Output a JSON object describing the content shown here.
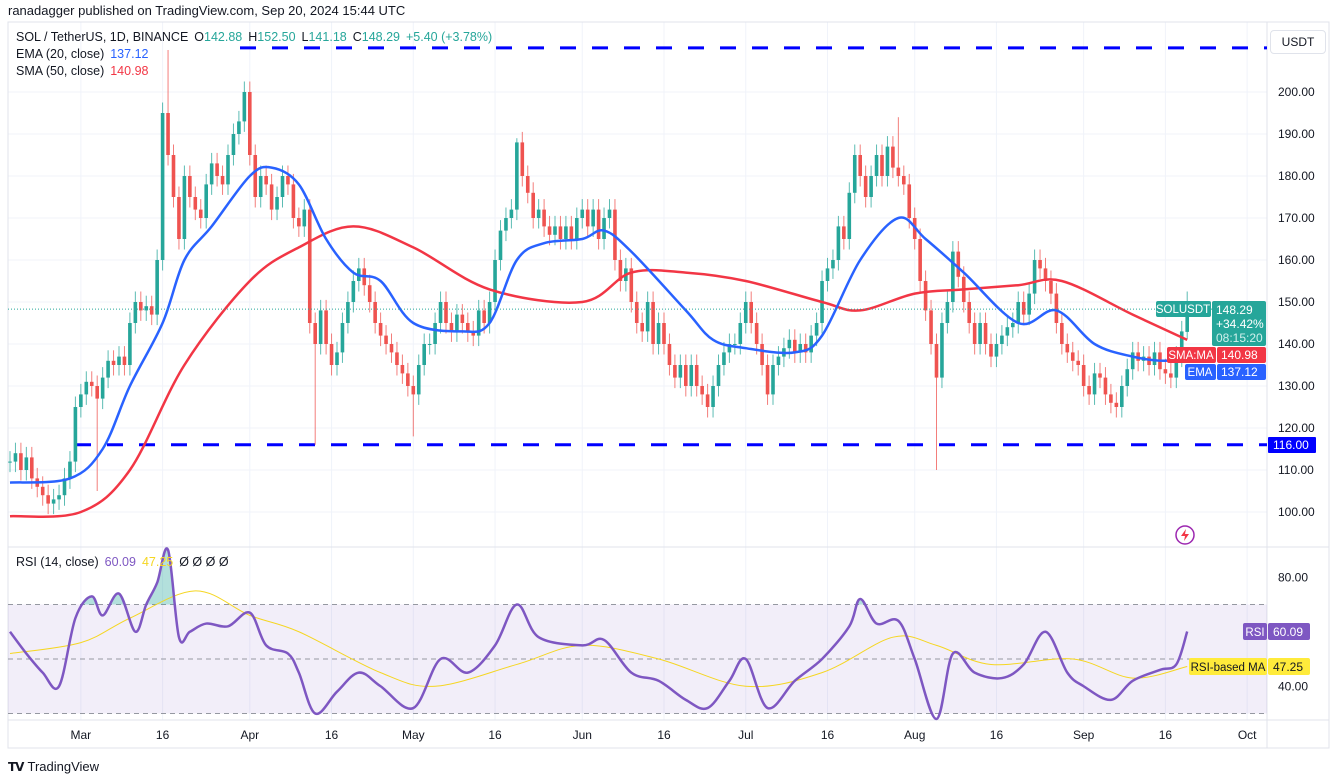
{
  "header": {
    "published": "ranadagger published on TradingView.com, Sep 20, 2024 15:44 UTC",
    "symbol": "SOL / TetherUS, 1D, BINANCE",
    "o_label": "O",
    "o": "142.88",
    "h_label": "H",
    "h": "152.50",
    "l_label": "L",
    "l": "141.18",
    "c_label": "C",
    "c": "148.29",
    "change": "+5.40 (+3.78%)",
    "ema_label": "EMA (20, close)",
    "ema_value": "137.12",
    "sma_label": "SMA (50, close)",
    "sma_value": "140.98",
    "rsi_label": "RSI (14, close)",
    "rsi_value": "60.09",
    "rsi_ma_value": "47.25",
    "rsi_extra": "Ø Ø Ø Ø"
  },
  "currency_button": "USDT",
  "badges": {
    "symbol": "SOLUSDT",
    "price": "148.29",
    "pct": "+34.42%",
    "countdown": "08:15:20",
    "sma_tag": "SMA:MA",
    "sma": "140.98",
    "ema_tag": "EMA",
    "ema": "137.12",
    "support": "116.00",
    "rsi_tag": "RSI",
    "rsi": "60.09",
    "rsi_ma_tag": "RSI-based MA",
    "rsi_ma": "47.25"
  },
  "footer": {
    "brand": "TradingView",
    "logo_text": "TV"
  },
  "colors": {
    "up": "#26a69a",
    "down": "#ef5350",
    "ema": "#2962ff",
    "sma": "#f23645",
    "levels": "#0000ff",
    "rsi": "#7e57c2",
    "rsi_ma": "#f5d622",
    "overbought_fill": "#26a69a"
  },
  "icons": {
    "alert": "lightning-bolt-icon",
    "logo": "tradingview-logo-icon"
  },
  "chart_data": {
    "type": "candlestick",
    "title": "SOL / TetherUS, 1D, BINANCE",
    "price_axis": {
      "ylim": [
        92,
        212
      ],
      "ticks": [
        "100.00",
        "110.00",
        "120.00",
        "130.00",
        "140.00",
        "150.00",
        "160.00",
        "170.00",
        "180.00",
        "190.00",
        "200.00"
      ]
    },
    "time_axis": [
      {
        "date": "2024-03-01",
        "label": "Mar"
      },
      {
        "date": "2024-03-16",
        "label": "16"
      },
      {
        "date": "2024-04-01",
        "label": "Apr"
      },
      {
        "date": "2024-04-16",
        "label": "16"
      },
      {
        "date": "2024-05-01",
        "label": "May"
      },
      {
        "date": "2024-05-16",
        "label": "16"
      },
      {
        "date": "2024-06-01",
        "label": "Jun"
      },
      {
        "date": "2024-06-16",
        "label": "16"
      },
      {
        "date": "2024-07-01",
        "label": "Jul"
      },
      {
        "date": "2024-07-16",
        "label": "16"
      },
      {
        "date": "2024-08-01",
        "label": "Aug"
      },
      {
        "date": "2024-08-16",
        "label": "16"
      },
      {
        "date": "2024-09-01",
        "label": "Sep"
      },
      {
        "date": "2024-09-16",
        "label": "16"
      },
      {
        "date": "2024-10-01",
        "label": "Oct"
      }
    ],
    "daily_closes": [
      {
        "month": "2024-02",
        "first_day": 17,
        "close": [
          112,
          114,
          110,
          113,
          108,
          106,
          104,
          102,
          103,
          104,
          108,
          112,
          125
        ]
      },
      {
        "month": "2024-03",
        "first_day": 1,
        "close": [
          128,
          131,
          130,
          127,
          132,
          136,
          135,
          137,
          135,
          145,
          150,
          148,
          149,
          147,
          160,
          195,
          185,
          175,
          165,
          180,
          175,
          172,
          170,
          178,
          183,
          180,
          178,
          185,
          190,
          193,
          200
        ]
      },
      {
        "month": "2024-04",
        "first_day": 1,
        "close": [
          185,
          175,
          180,
          178,
          172,
          175,
          180,
          178,
          170,
          168,
          172,
          145,
          140,
          148,
          140,
          135,
          138,
          145,
          150,
          155,
          158,
          154,
          150,
          145,
          142,
          140,
          138,
          135,
          133,
          130
        ]
      },
      {
        "month": "2024-05",
        "first_day": 1,
        "close": [
          128,
          135,
          140,
          140,
          145,
          150,
          145,
          143,
          147,
          145,
          143,
          142,
          148,
          145,
          150,
          160,
          167,
          170,
          172,
          188,
          180,
          176,
          170,
          172,
          168,
          166,
          168,
          165,
          168,
          165,
          170
        ]
      },
      {
        "month": "2024-06",
        "first_day": 1,
        "close": [
          172,
          168,
          172,
          165,
          170,
          172,
          160,
          155,
          158,
          150,
          145,
          143,
          150,
          140,
          145,
          140,
          135,
          132,
          135,
          130,
          135,
          130,
          128,
          125,
          130,
          135,
          138,
          140,
          140,
          145
        ]
      },
      {
        "month": "2024-07",
        "first_day": 1,
        "close": [
          150,
          145,
          140,
          135,
          128,
          135,
          137,
          139,
          141,
          138,
          140,
          138,
          142,
          145,
          155,
          158,
          160,
          168,
          165,
          176,
          185,
          180,
          175,
          180,
          185,
          180,
          187,
          182,
          180,
          178,
          170
        ]
      },
      {
        "month": "2024-08",
        "first_day": 1,
        "close": [
          165,
          155,
          148,
          140,
          132,
          145,
          150,
          162,
          156,
          150,
          145,
          140,
          145,
          140,
          137,
          140,
          142,
          144,
          145,
          150,
          147,
          152,
          160,
          158,
          155,
          152,
          145,
          140,
          138,
          136,
          135
        ]
      },
      {
        "month": "2024-09",
        "first_day": 1,
        "close": [
          130,
          128,
          133,
          132,
          128,
          126,
          125,
          130,
          134,
          138,
          136,
          137,
          135,
          138,
          134,
          133,
          132,
          137,
          143,
          148.29
        ]
      }
    ],
    "notable_wicks": [
      {
        "date": "2024-03-04",
        "low": 105
      },
      {
        "date": "2024-03-17",
        "high": 210
      },
      {
        "date": "2024-04-13",
        "low": 116
      },
      {
        "date": "2024-05-01",
        "low": 118
      },
      {
        "date": "2024-05-20",
        "high": 189
      },
      {
        "date": "2024-07-29",
        "high": 194
      },
      {
        "date": "2024-08-05",
        "low": 110
      },
      {
        "date": "2024-09-20",
        "open": 142.88,
        "high": 152.5,
        "low": 141.18
      }
    ],
    "horizontal_levels": [
      210.5,
      116
    ],
    "ema20": [
      [
        "2024-02-17",
        107
      ],
      [
        "2024-02-28",
        108
      ],
      [
        "2024-03-05",
        115
      ],
      [
        "2024-03-10",
        130
      ],
      [
        "2024-03-16",
        145
      ],
      [
        "2024-03-20",
        160
      ],
      [
        "2024-03-25",
        168
      ],
      [
        "2024-04-01",
        180
      ],
      [
        "2024-04-05",
        182
      ],
      [
        "2024-04-10",
        178
      ],
      [
        "2024-04-15",
        165
      ],
      [
        "2024-04-20",
        157
      ],
      [
        "2024-04-25",
        155
      ],
      [
        "2024-05-01",
        145
      ],
      [
        "2024-05-10",
        143
      ],
      [
        "2024-05-15",
        145
      ],
      [
        "2024-05-20",
        160
      ],
      [
        "2024-05-25",
        164
      ],
      [
        "2024-06-01",
        165
      ],
      [
        "2024-06-05",
        167
      ],
      [
        "2024-06-10",
        162
      ],
      [
        "2024-06-20",
        148
      ],
      [
        "2024-06-25",
        141
      ],
      [
        "2024-07-01",
        139
      ],
      [
        "2024-07-10",
        138
      ],
      [
        "2024-07-15",
        142
      ],
      [
        "2024-07-22",
        160
      ],
      [
        "2024-07-29",
        170
      ],
      [
        "2024-08-03",
        165
      ],
      [
        "2024-08-10",
        157
      ],
      [
        "2024-08-20",
        145
      ],
      [
        "2024-08-27",
        148
      ],
      [
        "2024-09-03",
        140
      ],
      [
        "2024-09-10",
        137
      ],
      [
        "2024-09-16",
        136
      ],
      [
        "2024-09-20",
        137.12
      ]
    ],
    "sma50": [
      [
        "2024-02-17",
        99
      ],
      [
        "2024-03-01",
        100
      ],
      [
        "2024-03-10",
        110
      ],
      [
        "2024-03-20",
        135
      ],
      [
        "2024-04-01",
        155
      ],
      [
        "2024-04-10",
        163
      ],
      [
        "2024-04-20",
        168
      ],
      [
        "2024-05-01",
        163
      ],
      [
        "2024-05-15",
        153
      ],
      [
        "2024-06-01",
        150
      ],
      [
        "2024-06-10",
        157
      ],
      [
        "2024-06-20",
        157
      ],
      [
        "2024-07-01",
        155
      ],
      [
        "2024-07-15",
        150
      ],
      [
        "2024-07-22",
        148
      ],
      [
        "2024-08-01",
        152
      ],
      [
        "2024-08-10",
        153
      ],
      [
        "2024-08-20",
        154
      ],
      [
        "2024-08-28",
        155
      ],
      [
        "2024-09-10",
        147
      ],
      [
        "2024-09-20",
        140.98
      ]
    ],
    "rsi_pane": {
      "ticks": [
        "80.00",
        "40.00"
      ],
      "bands": [
        70,
        50,
        30
      ],
      "rsi": [
        [
          "2024-02-17",
          60
        ],
        [
          "2024-02-20",
          52
        ],
        [
          "2024-02-23",
          45
        ],
        [
          "2024-02-26",
          40
        ],
        [
          "2024-02-29",
          65
        ],
        [
          "2024-03-03",
          73
        ],
        [
          "2024-03-05",
          66
        ],
        [
          "2024-03-08",
          74
        ],
        [
          "2024-03-11",
          60
        ],
        [
          "2024-03-13",
          70
        ],
        [
          "2024-03-15",
          78
        ],
        [
          "2024-03-17",
          90
        ],
        [
          "2024-03-19",
          58
        ],
        [
          "2024-03-21",
          60
        ],
        [
          "2024-03-24",
          63
        ],
        [
          "2024-03-28",
          62
        ],
        [
          "2024-04-01",
          67
        ],
        [
          "2024-04-04",
          55
        ],
        [
          "2024-04-08",
          52
        ],
        [
          "2024-04-10",
          45
        ],
        [
          "2024-04-13",
          30
        ],
        [
          "2024-04-17",
          38
        ],
        [
          "2024-04-21",
          45
        ],
        [
          "2024-04-25",
          40
        ],
        [
          "2024-05-01",
          32
        ],
        [
          "2024-05-06",
          50
        ],
        [
          "2024-05-11",
          45
        ],
        [
          "2024-05-16",
          55
        ],
        [
          "2024-05-20",
          70
        ],
        [
          "2024-05-24",
          58
        ],
        [
          "2024-06-01",
          55
        ],
        [
          "2024-06-05",
          57
        ],
        [
          "2024-06-10",
          45
        ],
        [
          "2024-06-15",
          42
        ],
        [
          "2024-06-20",
          35
        ],
        [
          "2024-06-24",
          32
        ],
        [
          "2024-06-28",
          42
        ],
        [
          "2024-07-01",
          50
        ],
        [
          "2024-07-05",
          32
        ],
        [
          "2024-07-10",
          42
        ],
        [
          "2024-07-15",
          50
        ],
        [
          "2024-07-20",
          62
        ],
        [
          "2024-07-22",
          72
        ],
        [
          "2024-07-25",
          63
        ],
        [
          "2024-07-29",
          64
        ],
        [
          "2024-08-01",
          50
        ],
        [
          "2024-08-05",
          28
        ],
        [
          "2024-08-08",
          52
        ],
        [
          "2024-08-12",
          45
        ],
        [
          "2024-08-17",
          43
        ],
        [
          "2024-08-21",
          48
        ],
        [
          "2024-08-25",
          60
        ],
        [
          "2024-08-29",
          45
        ],
        [
          "2024-09-01",
          40
        ],
        [
          "2024-09-06",
          35
        ],
        [
          "2024-09-10",
          42
        ],
        [
          "2024-09-15",
          46
        ],
        [
          "2024-09-18",
          48
        ],
        [
          "2024-09-20",
          60.09
        ]
      ],
      "rsi_ma": [
        [
          "2024-02-17",
          52
        ],
        [
          "2024-03-01",
          56
        ],
        [
          "2024-03-10",
          65
        ],
        [
          "2024-03-22",
          75
        ],
        [
          "2024-04-01",
          66
        ],
        [
          "2024-04-10",
          60
        ],
        [
          "2024-04-25",
          45
        ],
        [
          "2024-05-05",
          40
        ],
        [
          "2024-05-20",
          48
        ],
        [
          "2024-06-01",
          55
        ],
        [
          "2024-06-15",
          50
        ],
        [
          "2024-07-01",
          40
        ],
        [
          "2024-07-15",
          45
        ],
        [
          "2024-07-28",
          58
        ],
        [
          "2024-08-05",
          55
        ],
        [
          "2024-08-15",
          48
        ],
        [
          "2024-08-30",
          50
        ],
        [
          "2024-09-10",
          43
        ],
        [
          "2024-09-20",
          47.25
        ]
      ]
    }
  }
}
